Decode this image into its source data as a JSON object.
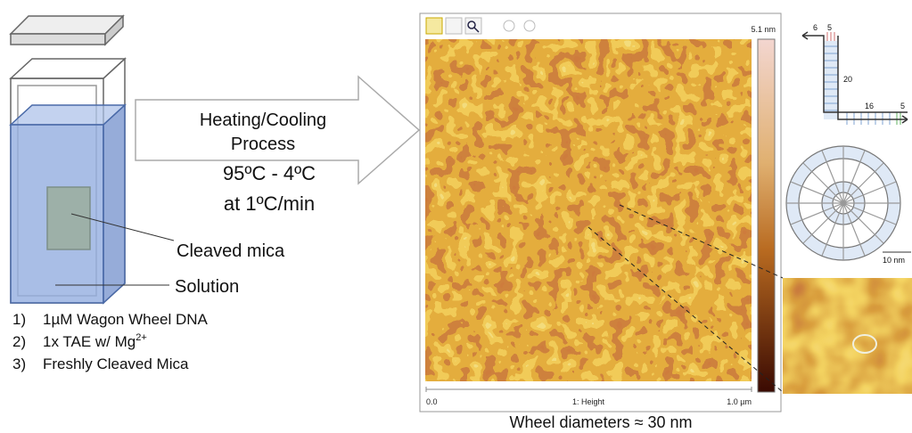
{
  "left": {
    "labels": {
      "cleaved_mica": "Cleaved mica",
      "solution": "Solution"
    },
    "steps": [
      {
        "num": "1)",
        "text": "1µM Wagon Wheel DNA"
      },
      {
        "num": "2)",
        "text": "1x TAE w/ Mg",
        "sup": "2+"
      },
      {
        "num": "3)",
        "text": "Freshly Cleaved Mica"
      }
    ]
  },
  "arrow": {
    "lines": [
      "Heating/Cooling",
      "Process"
    ],
    "conditions": [
      "95ºC - 4ºC",
      "at 1ºC/min"
    ]
  },
  "afm": {
    "scale_max": "5.1 nm",
    "axis_start": "0.0",
    "axis_label": "1: Height",
    "axis_end": "1.0 µm",
    "caption": "Wheel diameters ≈ 30 nm"
  },
  "schematic": {
    "labels": [
      "6",
      "5",
      "20",
      "16",
      "5"
    ],
    "scale": "10 nm"
  }
}
